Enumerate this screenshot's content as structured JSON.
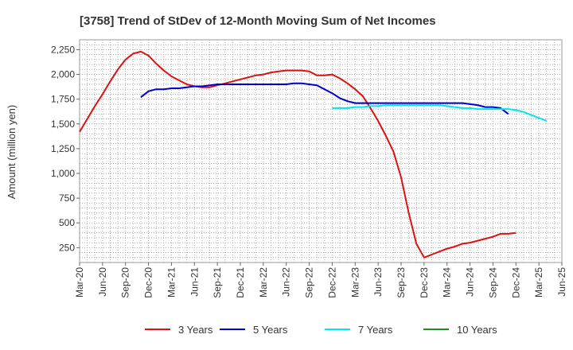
{
  "chart_data": {
    "type": "line",
    "title": "[3758]  Trend of StDev of 12-Month Moving Sum of Net Incomes",
    "ylabel": "Amount (million yen)",
    "xlabel": "",
    "ylim": [
      100,
      2350
    ],
    "yticks": [
      250,
      500,
      750,
      1000,
      1250,
      1500,
      1750,
      2000,
      2250
    ],
    "ytick_labels": [
      "250",
      "500",
      "750",
      "1,000",
      "1,250",
      "1,500",
      "1,750",
      "2,000",
      "2,250"
    ],
    "x_ticks": [
      "Mar-20",
      "Jun-20",
      "Sep-20",
      "Dec-20",
      "Mar-21",
      "Jun-21",
      "Sep-21",
      "Dec-21",
      "Mar-22",
      "Jun-22",
      "Sep-22",
      "Dec-22",
      "Mar-23",
      "Jun-23",
      "Sep-23",
      "Dec-23",
      "Mar-24",
      "Jun-24",
      "Sep-24",
      "Dec-24",
      "Mar-25",
      "Jun-25"
    ],
    "grid": true,
    "legend_position": "bottom",
    "series": [
      {
        "name": "3 Years",
        "color": "#dd1111",
        "start_index": 0,
        "values": [
          1420,
          1550,
          1680,
          1800,
          1930,
          2050,
          2150,
          2210,
          2230,
          2190,
          2110,
          2040,
          1980,
          1940,
          1900,
          1880,
          1870,
          1870,
          1890,
          1910,
          1930,
          1950,
          1970,
          1990,
          2000,
          2020,
          2030,
          2040,
          2040,
          2040,
          2030,
          1990,
          1990,
          2000,
          1960,
          1910,
          1850,
          1780,
          1660,
          1530,
          1380,
          1220,
          960,
          600,
          290,
          150,
          180,
          210,
          240,
          260,
          290,
          300,
          320,
          340,
          360,
          390,
          390,
          400
        ]
      },
      {
        "name": "5 Years",
        "color": "#0000cc",
        "start_index": 24,
        "values": [
          1770,
          1830,
          1850,
          1850,
          1860,
          1860,
          1870,
          1880,
          1880,
          1890,
          1900,
          1900,
          1900,
          1900,
          1900,
          1900,
          1900,
          1900,
          1900,
          1900,
          1910,
          1910,
          1900,
          1890,
          1850,
          1810,
          1760,
          1730,
          1710,
          1710,
          1710,
          1710,
          1710,
          1710,
          1710,
          1710,
          1710,
          1710,
          1710,
          1710,
          1710,
          1710,
          1710,
          1700,
          1690,
          1670,
          1670,
          1660,
          1600
        ]
      },
      {
        "name": "7 Years",
        "color": "#00e5ee",
        "start_index": 99,
        "values": [
          1660,
          1660,
          1660,
          1670,
          1670,
          1680,
          1680,
          1690,
          1690,
          1690,
          1690,
          1690,
          1690,
          1690,
          1690,
          1680,
          1670,
          1660,
          1660,
          1650,
          1650,
          1650,
          1650,
          1650,
          1640,
          1620,
          1590,
          1560,
          1530
        ]
      },
      {
        "name": "10 Years",
        "color": "#228b22",
        "start_index": 0,
        "values": []
      }
    ]
  }
}
